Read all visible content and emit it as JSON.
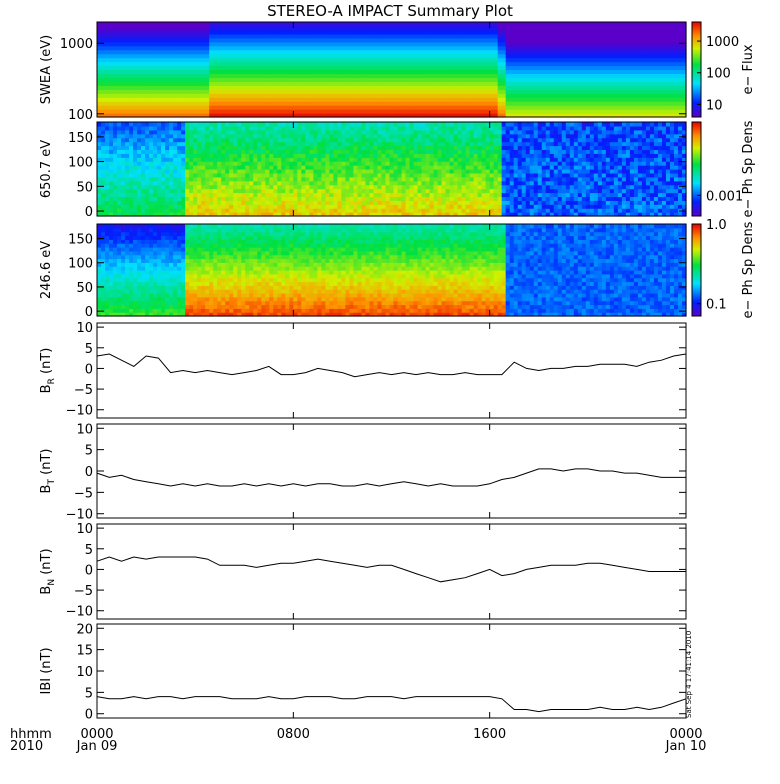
{
  "title": "STEREO-A IMPACT Summary Plot",
  "footer": {
    "unit_label": "hhmm",
    "year": "2010",
    "start_date": "Jan 09",
    "end_date": "Jan 10",
    "stamp": "Sat Sep 4 17:41:14 2010"
  },
  "chart_data": [
    {
      "type": "heatmap",
      "ylabel": "SWEA (eV)",
      "ylog": true,
      "ylim": [
        90,
        2000
      ],
      "yticks": [
        100,
        1000
      ],
      "ytick_labels": [
        "100",
        "1000"
      ],
      "colorbar": {
        "label": "e− Flux",
        "log": true,
        "range": [
          4,
          4000
        ],
        "ticks": [
          10,
          100,
          1000
        ],
        "tick_labels": [
          "10",
          "100",
          "1000"
        ]
      },
      "colormap": "rainbow",
      "description_values": {
        "transition_hour": 16.6,
        "flux_low_energy_before": 3000,
        "flux_low_energy_after": 700
      }
    },
    {
      "type": "heatmap",
      "ylabel": "650.7 eV",
      "ylim": [
        -10,
        180
      ],
      "yticks": [
        0,
        50,
        100,
        150
      ],
      "ytick_labels": [
        "0",
        "50",
        "100",
        "150"
      ],
      "colorbar": {
        "label": "e− Ph Sp Dens",
        "log": true,
        "ticks": [
          0.001
        ],
        "tick_labels": [
          "0.001"
        ]
      },
      "colormap": "rainbow"
    },
    {
      "type": "heatmap",
      "ylabel": "246.6 eV",
      "ylim": [
        -10,
        180
      ],
      "yticks": [
        0,
        50,
        100,
        150
      ],
      "ytick_labels": [
        "0",
        "50",
        "100",
        "150"
      ],
      "colorbar": {
        "label": "e− Ph Sp Dens",
        "log": true,
        "range": [
          0.07,
          1.0
        ],
        "ticks": [
          0.1,
          1.0
        ],
        "tick_labels": [
          "0.1",
          "1.0"
        ]
      },
      "colormap": "rainbow"
    },
    {
      "type": "line",
      "ylabel": "B_R (nT)",
      "ylabel_main": "B",
      "ylabel_sub": "R",
      "ylabel_unit": "(nT)",
      "ylim": [
        -12,
        11
      ],
      "yticks": [
        -10,
        -5,
        0,
        5,
        10
      ],
      "ytick_labels": [
        "−10",
        "−5",
        "0",
        "5",
        "10"
      ],
      "x": [
        0,
        0.5,
        1,
        1.5,
        2,
        2.5,
        3,
        3.5,
        4,
        4.5,
        5,
        5.5,
        6,
        6.5,
        7,
        7.5,
        8,
        8.5,
        9,
        9.5,
        10,
        10.5,
        11,
        11.5,
        12,
        12.5,
        13,
        13.5,
        14,
        14.5,
        15,
        15.5,
        16,
        16.5,
        17,
        17.5,
        18,
        18.5,
        19,
        19.5,
        20,
        20.5,
        21,
        21.5,
        22,
        22.5,
        23,
        23.5,
        24
      ],
      "y": [
        3,
        3.5,
        2,
        0.5,
        3,
        2.5,
        -1,
        -0.5,
        -1,
        -0.5,
        -1,
        -1.5,
        -1,
        -0.5,
        0.5,
        -1.5,
        -1.5,
        -1,
        0,
        -0.5,
        -1,
        -2,
        -1.5,
        -1,
        -1.5,
        -1,
        -1.5,
        -1,
        -1.5,
        -1.5,
        -1,
        -1.5,
        -1.5,
        -1.5,
        1.5,
        0,
        -0.5,
        0,
        0,
        0.5,
        0.5,
        1,
        1,
        1,
        0.5,
        1.5,
        2,
        3,
        3.5
      ]
    },
    {
      "type": "line",
      "ylabel": "B_T (nT)",
      "ylabel_main": "B",
      "ylabel_sub": "T",
      "ylabel_unit": "(nT)",
      "ylim": [
        -11,
        11
      ],
      "yticks": [
        -10,
        -5,
        0,
        5,
        10
      ],
      "ytick_labels": [
        "−10",
        "−5",
        "0",
        "5",
        "10"
      ],
      "x": [
        0,
        0.5,
        1,
        1.5,
        2,
        2.5,
        3,
        3.5,
        4,
        4.5,
        5,
        5.5,
        6,
        6.5,
        7,
        7.5,
        8,
        8.5,
        9,
        9.5,
        10,
        10.5,
        11,
        11.5,
        12,
        12.5,
        13,
        13.5,
        14,
        14.5,
        15,
        15.5,
        16,
        16.5,
        17,
        17.5,
        18,
        18.5,
        19,
        19.5,
        20,
        20.5,
        21,
        21.5,
        22,
        22.5,
        23,
        23.5,
        24
      ],
      "y": [
        -0.5,
        -1.5,
        -1,
        -2,
        -2.5,
        -3,
        -3.5,
        -3,
        -3.5,
        -3,
        -3.5,
        -3.5,
        -3,
        -3.5,
        -3,
        -3.5,
        -3,
        -3.5,
        -3,
        -3,
        -3.5,
        -3.5,
        -3,
        -3.5,
        -3,
        -2.5,
        -3,
        -3.5,
        -3,
        -3.5,
        -3.5,
        -3.5,
        -3,
        -2,
        -1.5,
        -0.5,
        0.5,
        0.5,
        0,
        0.5,
        0.5,
        0,
        0,
        -0.5,
        -0.5,
        -1,
        -1.5,
        -1.5,
        -1.5
      ]
    },
    {
      "type": "line",
      "ylabel": "B_N (nT)",
      "ylabel_main": "B",
      "ylabel_sub": "N",
      "ylabel_unit": "(nT)",
      "ylim": [
        -12,
        11
      ],
      "yticks": [
        -10,
        -5,
        0,
        5,
        10
      ],
      "ytick_labels": [
        "−10",
        "−5",
        "0",
        "5",
        "10"
      ],
      "x": [
        0,
        0.5,
        1,
        1.5,
        2,
        2.5,
        3,
        3.5,
        4,
        4.5,
        5,
        5.5,
        6,
        6.5,
        7,
        7.5,
        8,
        8.5,
        9,
        9.5,
        10,
        10.5,
        11,
        11.5,
        12,
        12.5,
        13,
        13.5,
        14,
        14.5,
        15,
        15.5,
        16,
        16.5,
        17,
        17.5,
        18,
        18.5,
        19,
        19.5,
        20,
        20.5,
        21,
        21.5,
        22,
        22.5,
        23,
        23.5,
        24
      ],
      "y": [
        2,
        3,
        2,
        3,
        2.5,
        3,
        3,
        3,
        3,
        2.5,
        1,
        1,
        1,
        0.5,
        1,
        1.5,
        1.5,
        2,
        2.5,
        2,
        1.5,
        1,
        0.5,
        1,
        1,
        0,
        -1,
        -2,
        -3,
        -2.5,
        -2,
        -1,
        0,
        -1.5,
        -1,
        0,
        0.5,
        1,
        1,
        1,
        1.5,
        1.5,
        1,
        0.5,
        0,
        -0.5,
        -0.5,
        -0.5,
        -0.5
      ]
    },
    {
      "type": "line",
      "ylabel": "|B| (nT)",
      "ylabel_text": "IBI (nT)",
      "ylim": [
        -1,
        21
      ],
      "yticks": [
        0,
        5,
        10,
        15,
        20
      ],
      "ytick_labels": [
        "0",
        "5",
        "10",
        "15",
        "20"
      ],
      "x": [
        0,
        0.5,
        1,
        1.5,
        2,
        2.5,
        3,
        3.5,
        4,
        4.5,
        5,
        5.5,
        6,
        6.5,
        7,
        7.5,
        8,
        8.5,
        9,
        9.5,
        10,
        10.5,
        11,
        11.5,
        12,
        12.5,
        13,
        13.5,
        14,
        14.5,
        15,
        15.5,
        16,
        16.5,
        17,
        17.5,
        18,
        18.5,
        19,
        19.5,
        20,
        20.5,
        21,
        21.5,
        22,
        22.5,
        23,
        23.5,
        24
      ],
      "y": [
        4,
        3.5,
        3.5,
        4,
        3.5,
        4,
        4,
        3.5,
        4,
        4,
        4,
        3.5,
        3.5,
        3.5,
        4,
        3.5,
        3.5,
        4,
        4,
        4,
        3.5,
        3.5,
        4,
        4,
        4,
        3.5,
        4,
        4,
        4,
        4,
        4,
        4,
        4,
        3.5,
        1,
        1,
        0.5,
        1,
        1,
        1,
        1,
        1.5,
        1,
        1,
        1.5,
        1,
        1.5,
        2.5,
        3.5
      ]
    }
  ],
  "xaxis": {
    "xlim": [
      0,
      24
    ],
    "ticks": [
      0,
      8,
      16,
      24
    ],
    "tick_labels": [
      "0000",
      "0800",
      "1600",
      "0000"
    ]
  }
}
